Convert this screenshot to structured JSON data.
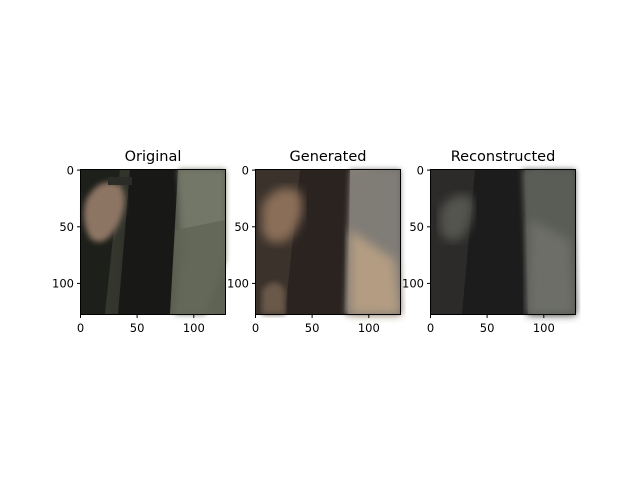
{
  "chart_data": [
    {
      "type": "image",
      "title": "Original",
      "xticks": [
        0,
        50,
        100
      ],
      "yticks": [
        0,
        50,
        100
      ],
      "xlim": [
        0,
        128
      ],
      "ylim": [
        128,
        0
      ],
      "palette": {
        "bg": "#4f5349",
        "dark": "#1b1c18",
        "light": "#7b7f72",
        "skin": "#8d7464",
        "ground": "#6c705f"
      }
    },
    {
      "type": "image",
      "title": "Generated",
      "xticks": [
        0,
        50,
        100
      ],
      "yticks": [
        0,
        50,
        100
      ],
      "xlim": [
        0,
        128
      ],
      "ylim": [
        128,
        0
      ],
      "palette": {
        "bg": "#4d4239",
        "dark": "#2a2320",
        "light": "#b39c82",
        "skin": "#8a6e58",
        "grey": "#7f7d79"
      }
    },
    {
      "type": "image",
      "title": "Reconstructed",
      "xticks": [
        0,
        50,
        100
      ],
      "yticks": [
        0,
        50,
        100
      ],
      "xlim": [
        0,
        128
      ],
      "ylim": [
        128,
        0
      ],
      "palette": {
        "bg": "#2c2b2a",
        "dark": "#1c1c1c",
        "light": "#6d6e68",
        "skin": "#545450",
        "grey": "#5a5b57"
      }
    }
  ]
}
